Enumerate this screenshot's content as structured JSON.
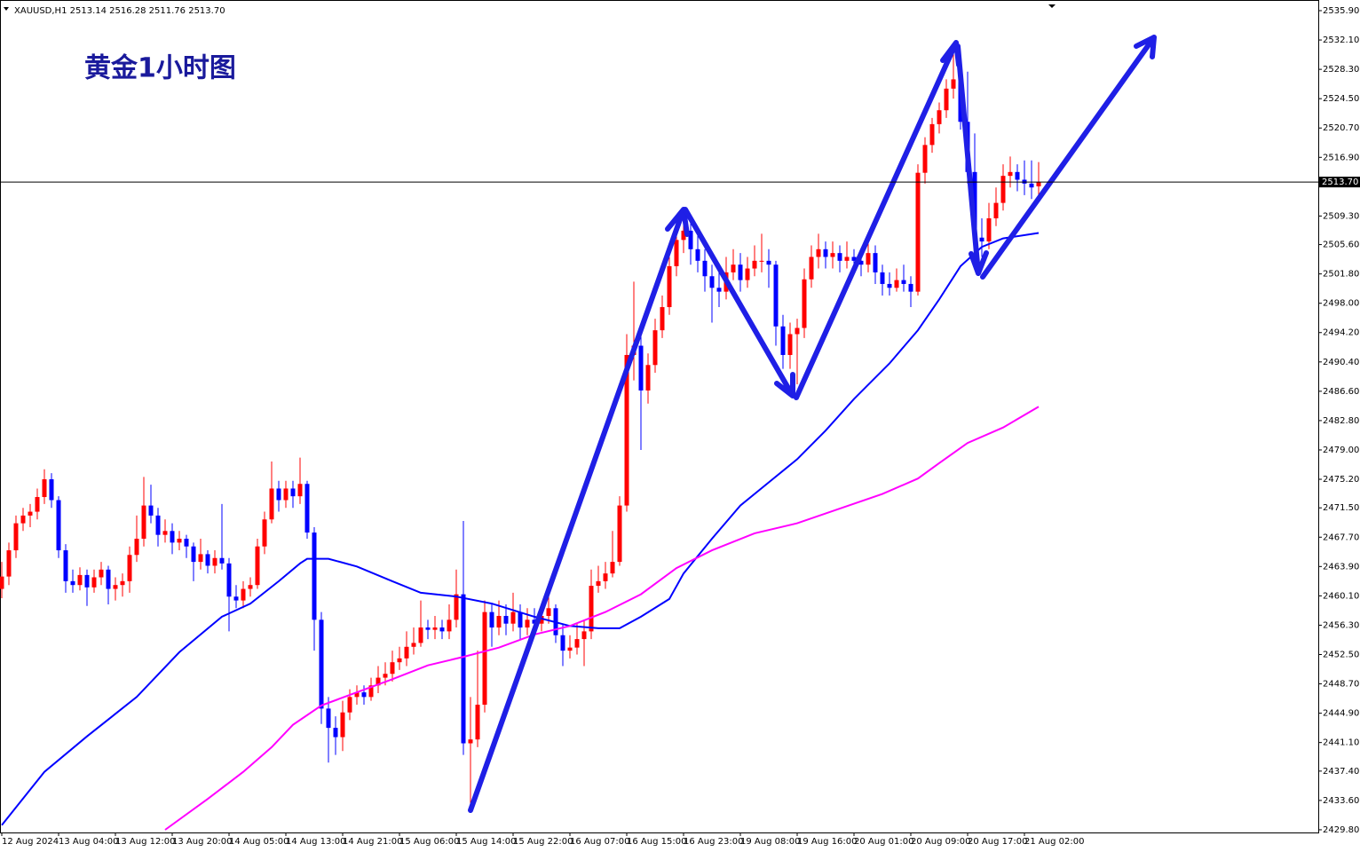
{
  "chart_data": {
    "type": "candlestick",
    "title": "黄金1小时图",
    "header": "XAUUSD,H1  2513.14 2516.28 2511.76 2513.70",
    "up_color": "#ff0000",
    "down_color": "#0000ff",
    "xlim": [
      -0.25,
      185.375
    ],
    "ylim": [
      2429.45,
      2536.82
    ],
    "xticks": [
      {
        "value": 0,
        "label": "12 Aug 2024"
      },
      {
        "value": 8,
        "label": "13 Aug 04:00"
      },
      {
        "value": 16,
        "label": "13 Aug 12:00"
      },
      {
        "value": 24,
        "label": "13 Aug 20:00"
      },
      {
        "value": 32,
        "label": "14 Aug 05:00"
      },
      {
        "value": 40,
        "label": "14 Aug 13:00"
      },
      {
        "value": 48,
        "label": "14 Aug 21:00"
      },
      {
        "value": 56,
        "label": "15 Aug 06:00"
      },
      {
        "value": 64,
        "label": "15 Aug 14:00"
      },
      {
        "value": 72,
        "label": "15 Aug 22:00"
      },
      {
        "value": 80,
        "label": "16 Aug 07:00"
      },
      {
        "value": 88,
        "label": "16 Aug 15:00"
      },
      {
        "value": 96,
        "label": "16 Aug 23:00"
      },
      {
        "value": 104,
        "label": "19 Aug 08:00"
      },
      {
        "value": 112,
        "label": "19 Aug 16:00"
      },
      {
        "value": 120,
        "label": "20 Aug 01:00"
      },
      {
        "value": 128,
        "label": "20 Aug 09:00"
      },
      {
        "value": 136,
        "label": "20 Aug 17:00"
      },
      {
        "value": 144,
        "label": "21 Aug 02:00"
      }
    ],
    "yticks": [
      {
        "value": 2535.9,
        "label": "2535.90"
      },
      {
        "value": 2532.1,
        "label": "2532.10"
      },
      {
        "value": 2528.3,
        "label": "2528.30"
      },
      {
        "value": 2524.5,
        "label": "2524.50"
      },
      {
        "value": 2520.7,
        "label": "2520.70"
      },
      {
        "value": 2516.9,
        "label": "2516.90"
      },
      {
        "value": 2509.3,
        "label": "2509.30"
      },
      {
        "value": 2505.6,
        "label": "2505.60"
      },
      {
        "value": 2501.8,
        "label": "2501.80"
      },
      {
        "value": 2498,
        "label": "2498.00"
      },
      {
        "value": 2494.2,
        "label": "2494.20"
      },
      {
        "value": 2490.4,
        "label": "2490.40"
      },
      {
        "value": 2486.6,
        "label": "2486.60"
      },
      {
        "value": 2482.8,
        "label": "2482.80"
      },
      {
        "value": 2479,
        "label": "2479.00"
      },
      {
        "value": 2475.2,
        "label": "2475.20"
      },
      {
        "value": 2471.5,
        "label": "2471.50"
      },
      {
        "value": 2467.7,
        "label": "2467.70"
      },
      {
        "value": 2463.9,
        "label": "2463.90"
      },
      {
        "value": 2460.1,
        "label": "2460.10"
      },
      {
        "value": 2456.3,
        "label": "2456.30"
      },
      {
        "value": 2452.5,
        "label": "2452.50"
      },
      {
        "value": 2448.7,
        "label": "2448.70"
      },
      {
        "value": 2444.9,
        "label": "2444.90"
      },
      {
        "value": 2441.1,
        "label": "2441.10"
      },
      {
        "value": 2437.4,
        "label": "2437.40"
      },
      {
        "value": 2433.6,
        "label": "2433.60"
      },
      {
        "value": 2429.8,
        "label": "2429.80"
      }
    ],
    "current_price": {
      "value": 2513.7,
      "label": "2513.70"
    },
    "ohlc": [
      [
        2461.0,
        2464.5,
        2459.8,
        2462.6
      ],
      [
        2462.6,
        2467.0,
        2461.5,
        2466.0
      ],
      [
        2466.0,
        2470.5,
        2465.0,
        2469.5
      ],
      [
        2469.5,
        2471.5,
        2468.5,
        2470.5
      ],
      [
        2470.5,
        2472.0,
        2469.0,
        2471.0
      ],
      [
        2471.0,
        2474.0,
        2470.0,
        2472.9
      ],
      [
        2472.9,
        2476.5,
        2472.0,
        2475.2
      ],
      [
        2475.2,
        2476.0,
        2471.5,
        2472.5
      ],
      [
        2472.5,
        2473.0,
        2465.0,
        2466.0
      ],
      [
        2466.0,
        2466.8,
        2460.5,
        2462.0
      ],
      [
        2462.0,
        2463.5,
        2460.5,
        2461.5
      ],
      [
        2461.5,
        2463.8,
        2460.8,
        2462.8
      ],
      [
        2462.8,
        2463.5,
        2458.8,
        2461.2
      ],
      [
        2461.2,
        2463.5,
        2460.5,
        2462.5
      ],
      [
        2462.5,
        2464.5,
        2461.5,
        2463.5
      ],
      [
        2463.5,
        2464.0,
        2459.0,
        2461.0
      ],
      [
        2461.0,
        2462.5,
        2459.5,
        2461.5
      ],
      [
        2461.5,
        2463.0,
        2460.0,
        2462.0
      ],
      [
        2462.0,
        2466.5,
        2460.5,
        2465.4
      ],
      [
        2465.4,
        2470.5,
        2464.5,
        2467.5
      ],
      [
        2467.5,
        2475.5,
        2466.5,
        2471.8
      ],
      [
        2471.8,
        2474.5,
        2469.5,
        2470.5
      ],
      [
        2470.5,
        2471.5,
        2466.5,
        2468.0
      ],
      [
        2468.0,
        2470.0,
        2467.0,
        2468.5
      ],
      [
        2468.5,
        2469.5,
        2465.5,
        2467.0
      ],
      [
        2467.0,
        2468.5,
        2466.0,
        2467.5
      ],
      [
        2467.5,
        2468.0,
        2465.0,
        2466.5
      ],
      [
        2466.5,
        2467.0,
        2462.0,
        2464.5
      ],
      [
        2464.5,
        2467.5,
        2463.5,
        2465.5
      ],
      [
        2465.5,
        2466.0,
        2463.0,
        2464.0
      ],
      [
        2464.0,
        2466.0,
        2463.0,
        2465.0
      ],
      [
        2465.0,
        2472.0,
        2463.5,
        2464.3
      ],
      [
        2464.3,
        2465.0,
        2455.5,
        2460.0
      ],
      [
        2460.0,
        2461.5,
        2458.5,
        2459.5
      ],
      [
        2459.5,
        2462.0,
        2458.5,
        2461.0
      ],
      [
        2461.0,
        2462.5,
        2460.0,
        2461.5
      ],
      [
        2461.5,
        2467.5,
        2461.0,
        2466.5
      ],
      [
        2466.5,
        2471.0,
        2465.5,
        2470.0
      ],
      [
        2470.0,
        2477.5,
        2469.5,
        2474.0
      ],
      [
        2474.0,
        2475.0,
        2471.0,
        2472.5
      ],
      [
        2472.5,
        2475.0,
        2471.5,
        2474.0
      ],
      [
        2474.0,
        2475.0,
        2471.5,
        2473.0
      ],
      [
        2473.0,
        2478.0,
        2472.0,
        2474.6
      ],
      [
        2474.6,
        2475.0,
        2467.5,
        2468.3
      ],
      [
        2468.3,
        2469.0,
        2453.0,
        2457.0
      ],
      [
        2457.0,
        2458.0,
        2443.5,
        2445.5
      ],
      [
        2445.5,
        2447.0,
        2438.5,
        2443.0
      ],
      [
        2443.0,
        2444.5,
        2439.5,
        2441.8
      ],
      [
        2441.8,
        2446.5,
        2440.0,
        2445.0
      ],
      [
        2445.0,
        2448.0,
        2444.0,
        2447.0
      ],
      [
        2447.0,
        2448.5,
        2446.0,
        2447.6
      ],
      [
        2447.6,
        2448.5,
        2446.0,
        2447.0
      ],
      [
        2447.0,
        2449.5,
        2446.5,
        2448.5
      ],
      [
        2448.5,
        2451.0,
        2447.5,
        2449.5
      ],
      [
        2449.5,
        2451.5,
        2448.5,
        2450.0
      ],
      [
        2450.0,
        2453.0,
        2449.0,
        2451.5
      ],
      [
        2451.5,
        2453.5,
        2450.5,
        2452.0
      ],
      [
        2452.0,
        2455.5,
        2451.0,
        2453.5
      ],
      [
        2453.5,
        2456.0,
        2452.5,
        2454.0
      ],
      [
        2454.0,
        2459.5,
        2453.5,
        2456.0
      ],
      [
        2456.0,
        2457.0,
        2454.5,
        2455.7
      ],
      [
        2455.7,
        2457.5,
        2454.5,
        2456.0
      ],
      [
        2456.0,
        2457.0,
        2454.5,
        2455.5
      ],
      [
        2455.5,
        2459.0,
        2454.5,
        2457.0
      ],
      [
        2457.0,
        2463.5,
        2456.0,
        2460.3
      ],
      [
        2460.3,
        2469.8,
        2439.5,
        2441.0
      ],
      [
        2441.0,
        2447.0,
        2432.5,
        2441.5
      ],
      [
        2441.5,
        2453.0,
        2440.5,
        2446.0
      ],
      [
        2446.0,
        2459.5,
        2445.0,
        2458.0
      ],
      [
        2458.0,
        2459.0,
        2453.5,
        2456.0
      ],
      [
        2456.0,
        2459.5,
        2455.0,
        2457.5
      ],
      [
        2457.5,
        2459.0,
        2455.0,
        2456.5
      ],
      [
        2456.5,
        2460.5,
        2455.5,
        2458.0
      ],
      [
        2458.0,
        2459.0,
        2454.5,
        2456.0
      ],
      [
        2456.0,
        2458.5,
        2455.0,
        2457.0
      ],
      [
        2457.0,
        2458.5,
        2455.0,
        2456.5
      ],
      [
        2456.5,
        2459.0,
        2455.5,
        2457.5
      ],
      [
        2457.5,
        2460.0,
        2456.5,
        2458.5
      ],
      [
        2458.5,
        2459.0,
        2454.0,
        2455.0
      ],
      [
        2455.0,
        2456.5,
        2451.0,
        2453.0
      ],
      [
        2453.0,
        2455.0,
        2452.0,
        2453.4
      ],
      [
        2453.4,
        2456.5,
        2452.5,
        2454.5
      ],
      [
        2454.5,
        2457.0,
        2451.0,
        2455.5
      ],
      [
        2455.5,
        2463.5,
        2454.5,
        2461.4
      ],
      [
        2461.4,
        2464.0,
        2460.5,
        2462.0
      ],
      [
        2462.0,
        2464.5,
        2461.0,
        2463.0
      ],
      [
        2463.0,
        2468.5,
        2462.5,
        2464.5
      ],
      [
        2464.5,
        2473.0,
        2464.0,
        2471.8
      ],
      [
        2471.8,
        2494.0,
        2471.0,
        2491.3
      ],
      [
        2491.3,
        2500.8,
        2488.0,
        2492.5
      ],
      [
        2492.5,
        2494.0,
        2479.0,
        2486.7
      ],
      [
        2486.7,
        2491.5,
        2485.0,
        2490.0
      ],
      [
        2490.0,
        2496.0,
        2489.0,
        2494.5
      ],
      [
        2494.5,
        2499.0,
        2493.5,
        2497.5
      ],
      [
        2497.5,
        2504.0,
        2496.5,
        2502.8
      ],
      [
        2502.8,
        2508.5,
        2501.5,
        2506.2
      ],
      [
        2506.2,
        2509.0,
        2504.5,
        2507.4
      ],
      [
        2507.4,
        2508.5,
        2503.0,
        2505.0
      ],
      [
        2505.0,
        2507.0,
        2502.0,
        2503.5
      ],
      [
        2503.5,
        2505.0,
        2499.5,
        2501.5
      ],
      [
        2501.5,
        2503.0,
        2495.5,
        2500.0
      ],
      [
        2500.0,
        2502.0,
        2497.5,
        2499.5
      ],
      [
        2499.5,
        2504.0,
        2498.5,
        2502.0
      ],
      [
        2502.0,
        2505.0,
        2501.0,
        2503.0
      ],
      [
        2503.0,
        2504.5,
        2499.5,
        2501.0
      ],
      [
        2501.0,
        2504.0,
        2500.0,
        2502.5
      ],
      [
        2502.5,
        2505.5,
        2501.5,
        2503.5
      ],
      [
        2503.5,
        2507.0,
        2502.0,
        2503.5
      ],
      [
        2503.5,
        2505.0,
        2500.0,
        2503.0
      ],
      [
        2503.0,
        2503.5,
        2492.5,
        2495.0
      ],
      [
        2495.0,
        2496.5,
        2489.5,
        2491.3
      ],
      [
        2491.3,
        2495.5,
        2489.5,
        2494.0
      ],
      [
        2494.0,
        2496.0,
        2487.5,
        2494.8
      ],
      [
        2494.8,
        2502.5,
        2493.5,
        2501.1
      ],
      [
        2501.1,
        2505.5,
        2500.0,
        2504.0
      ],
      [
        2504.0,
        2507.0,
        2502.5,
        2505.0
      ],
      [
        2505.0,
        2506.0,
        2502.5,
        2504.0
      ],
      [
        2504.0,
        2506.0,
        2502.5,
        2504.5
      ],
      [
        2504.5,
        2505.5,
        2502.0,
        2503.5
      ],
      [
        2503.5,
        2506.0,
        2502.5,
        2504.0
      ],
      [
        2504.0,
        2505.0,
        2502.0,
        2503.5
      ],
      [
        2503.5,
        2504.5,
        2501.5,
        2503.0
      ],
      [
        2503.0,
        2506.5,
        2502.0,
        2504.5
      ],
      [
        2504.5,
        2505.5,
        2500.5,
        2502.0
      ],
      [
        2502.0,
        2503.0,
        2499.0,
        2500.5
      ],
      [
        2500.5,
        2502.0,
        2499.0,
        2500.0
      ],
      [
        2500.0,
        2502.5,
        2499.5,
        2501.0
      ],
      [
        2501.0,
        2503.0,
        2499.5,
        2500.5
      ],
      [
        2500.5,
        2501.5,
        2497.5,
        2499.5
      ],
      [
        2499.5,
        2516.0,
        2499.0,
        2514.9
      ],
      [
        2514.9,
        2519.5,
        2513.5,
        2518.5
      ],
      [
        2518.5,
        2522.0,
        2517.5,
        2521.2
      ],
      [
        2521.2,
        2524.0,
        2520.0,
        2523.0
      ],
      [
        2523.0,
        2527.0,
        2522.0,
        2525.8
      ],
      [
        2525.8,
        2530.4,
        2524.5,
        2527.0
      ],
      [
        2527.0,
        2529.0,
        2520.5,
        2521.5
      ],
      [
        2521.5,
        2528.0,
        2513.5,
        2515.0
      ],
      [
        2515.0,
        2520.0,
        2504.5,
        2506.5
      ],
      [
        2506.5,
        2509.0,
        2504.0,
        2506.0
      ],
      [
        2506.0,
        2511.0,
        2505.0,
        2509.0
      ],
      [
        2509.0,
        2513.0,
        2508.0,
        2511.0
      ],
      [
        2511.0,
        2516.0,
        2510.0,
        2514.5
      ],
      [
        2514.5,
        2517.0,
        2513.0,
        2515.0
      ],
      [
        2515.0,
        2516.0,
        2512.5,
        2514.0
      ],
      [
        2514.0,
        2516.5,
        2512.0,
        2513.5
      ],
      [
        2513.5,
        2516.5,
        2511.5,
        2513.0
      ],
      [
        2513.14,
        2516.28,
        2511.76,
        2513.7
      ]
    ],
    "series": [
      {
        "type": "line",
        "color": "#0000ff",
        "x": [
          0,
          6,
          12,
          19,
          25,
          31,
          35,
          39,
          42,
          43,
          46,
          50,
          55,
          59,
          64,
          69,
          75,
          80,
          84,
          87,
          90,
          94,
          96,
          100,
          104,
          108,
          112,
          116,
          120,
          125,
          129,
          132,
          135,
          138,
          141,
          146
        ],
        "values": [
          2430.4,
          2437.3,
          2441.9,
          2447.0,
          2452.8,
          2457.4,
          2459.1,
          2462.0,
          2464.3,
          2464.9,
          2464.9,
          2463.9,
          2462.0,
          2460.5,
          2460.0,
          2459.1,
          2457.4,
          2456.2,
          2455.9,
          2455.9,
          2457.4,
          2459.7,
          2463.0,
          2467.5,
          2471.8,
          2474.8,
          2477.8,
          2481.5,
          2485.6,
          2490.2,
          2494.5,
          2498.5,
          2502.8,
          2505.3,
          2506.4,
          2507.1
        ]
      },
      {
        "type": "line",
        "color": "#ff00ff",
        "x": [
          23,
          29,
          34,
          38,
          41,
          45,
          50,
          55,
          60,
          65,
          70,
          75,
          80,
          85,
          90,
          95,
          100,
          106,
          112,
          118,
          124,
          129,
          132,
          136,
          141,
          146
        ],
        "values": [
          2429.8,
          2433.8,
          2437.3,
          2440.5,
          2443.4,
          2445.9,
          2447.6,
          2449.3,
          2451.1,
          2452.2,
          2453.4,
          2455.1,
          2456.2,
          2458.0,
          2460.3,
          2463.7,
          2466.0,
          2468.2,
          2469.5,
          2471.4,
          2473.3,
          2475.3,
          2477.3,
          2479.9,
          2481.9,
          2484.6
        ]
      }
    ]
  }
}
